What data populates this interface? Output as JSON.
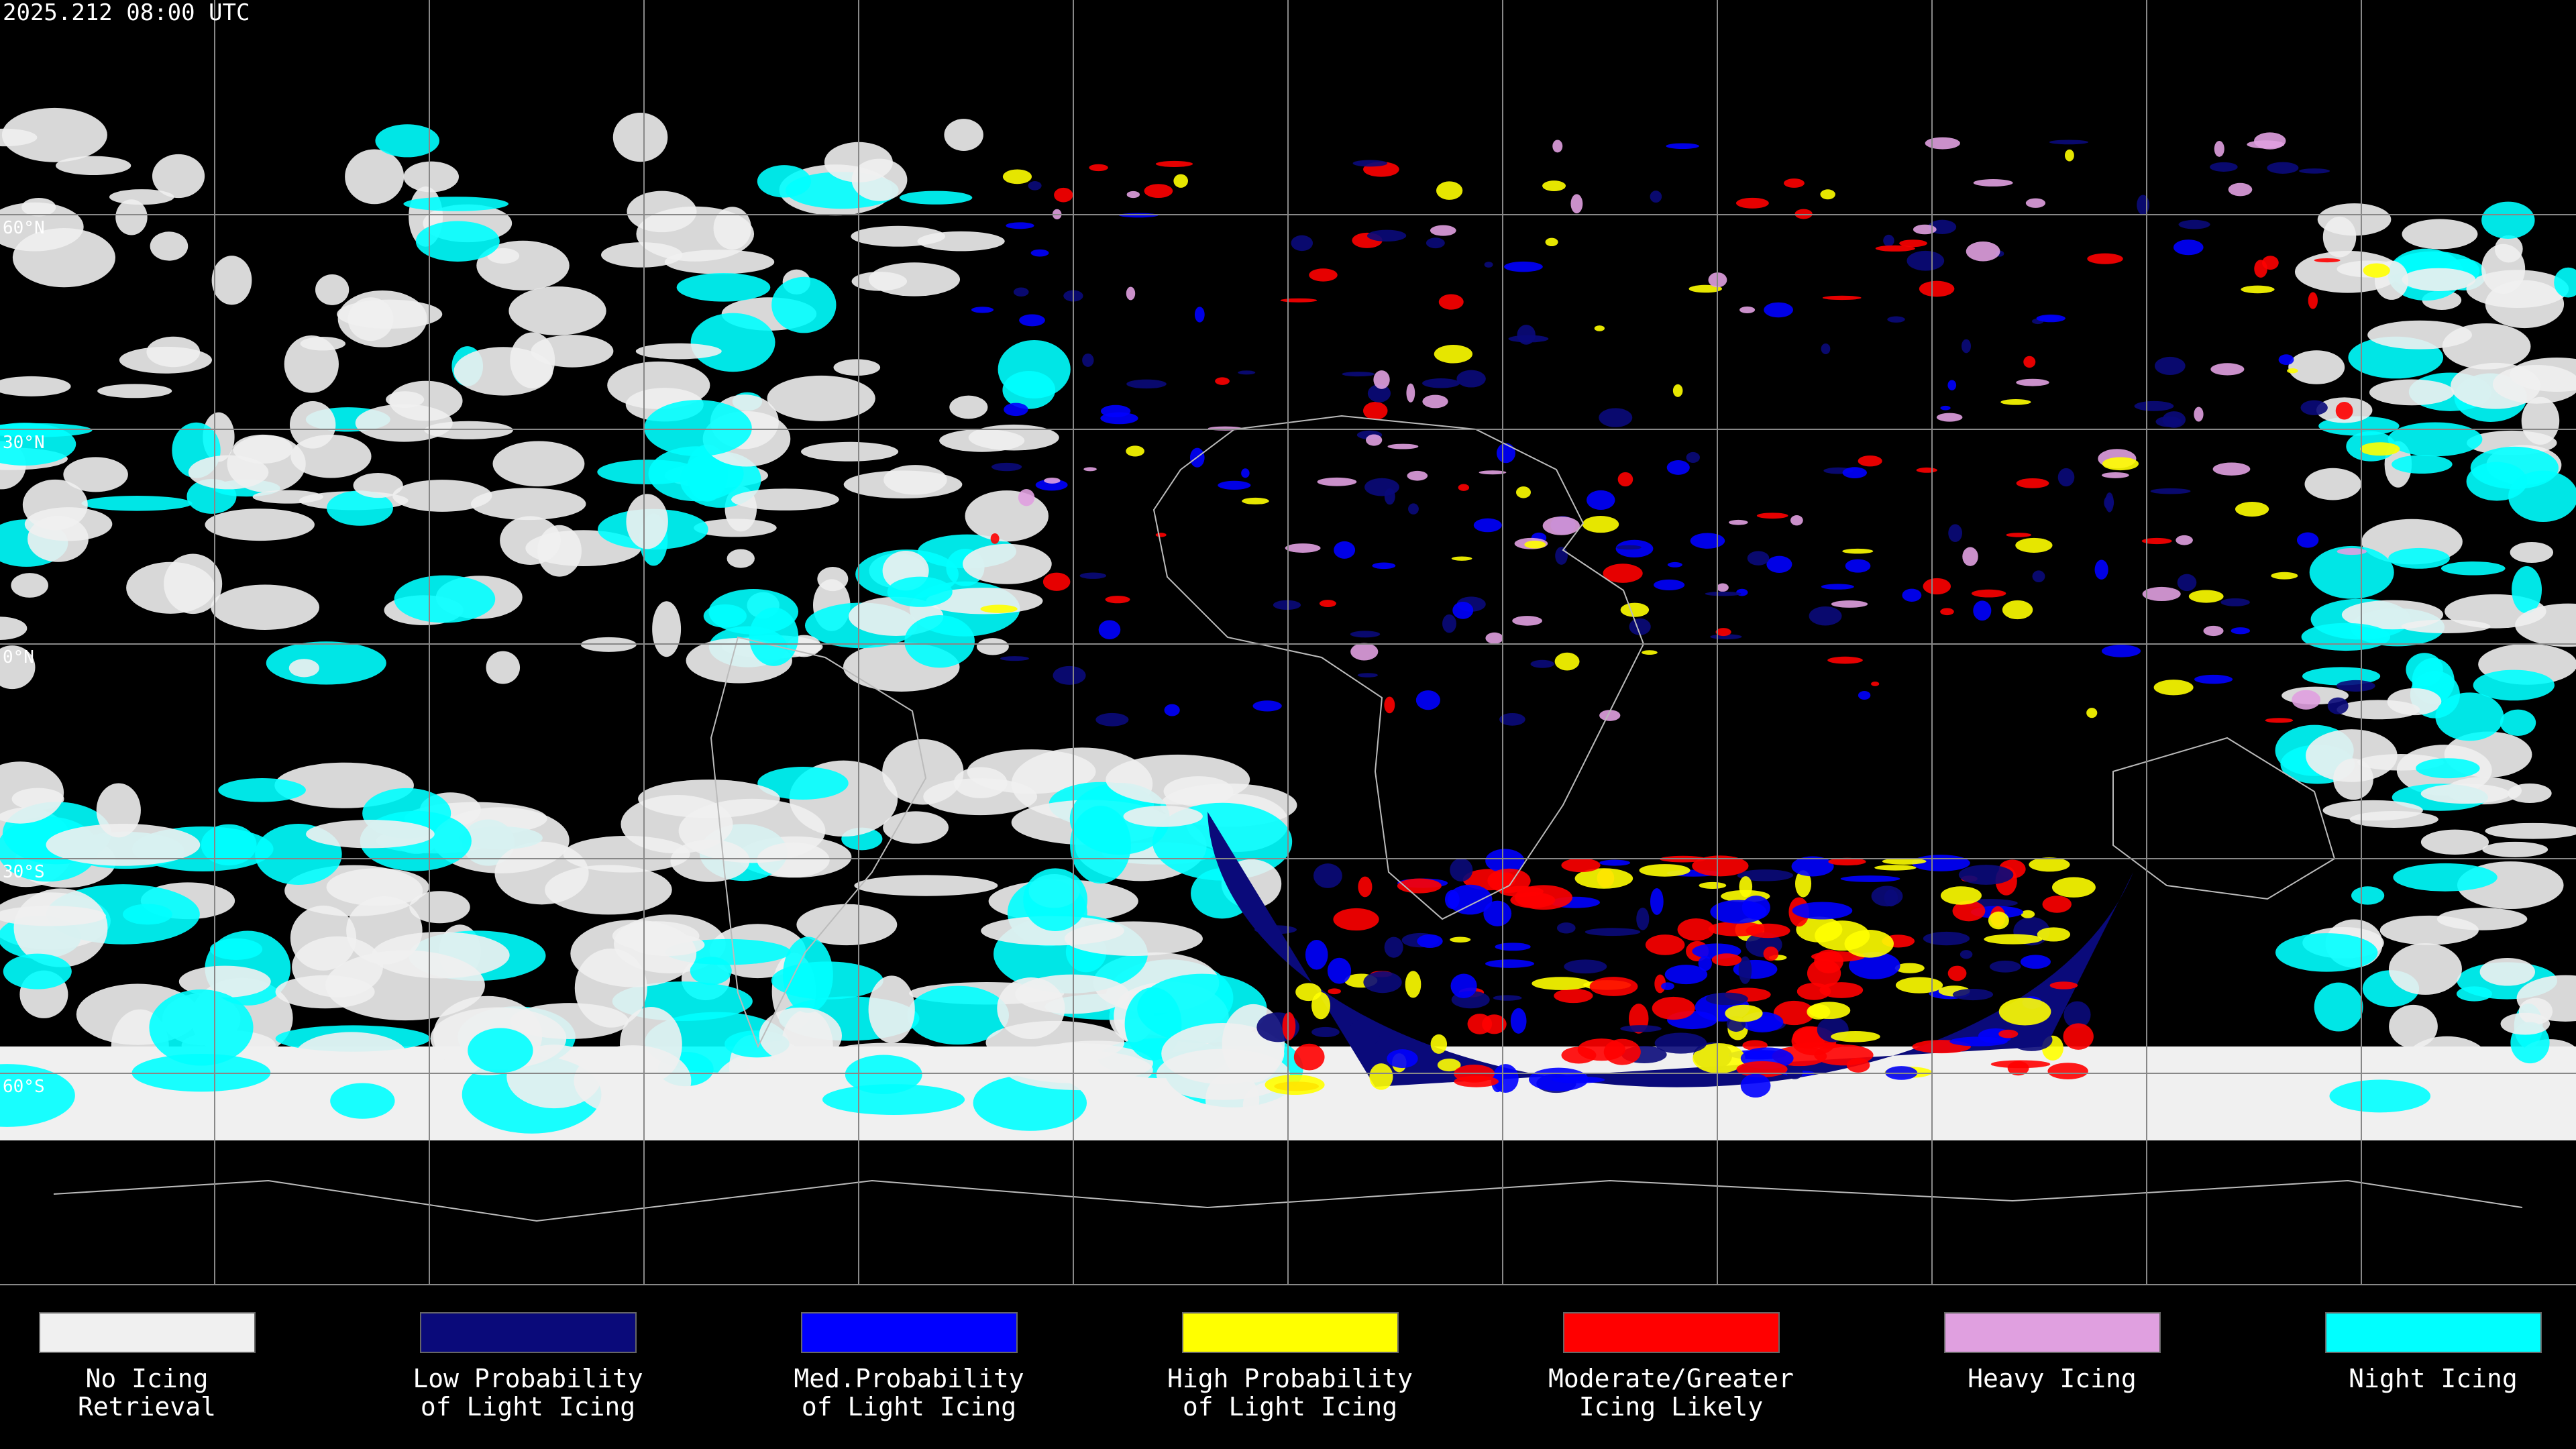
{
  "header": {
    "timestamp": "2025.212 08:00 UTC"
  },
  "map": {
    "latitude_labels": [
      "60°N",
      "30°N",
      "0°N",
      "30°S",
      "60°S"
    ]
  },
  "legend": {
    "items": [
      {
        "label_lines": [
          "No Icing",
          "Retrieval"
        ],
        "color": "#f0f0f0"
      },
      {
        "label_lines": [
          "Low Probability",
          "of Light Icing"
        ],
        "color": "#0a0a7a"
      },
      {
        "label_lines": [
          "Med.Probability",
          "of Light Icing"
        ],
        "color": "#0000ff"
      },
      {
        "label_lines": [
          "High Probability",
          "of Light Icing"
        ],
        "color": "#ffff00"
      },
      {
        "label_lines": [
          "Moderate/Greater",
          "Icing Likely"
        ],
        "color": "#ff0000"
      },
      {
        "label_lines": [
          "Heavy Icing"
        ],
        "color": "#e0a0e0"
      },
      {
        "label_lines": [
          "Night Icing"
        ],
        "color": "#00ffff"
      }
    ]
  }
}
